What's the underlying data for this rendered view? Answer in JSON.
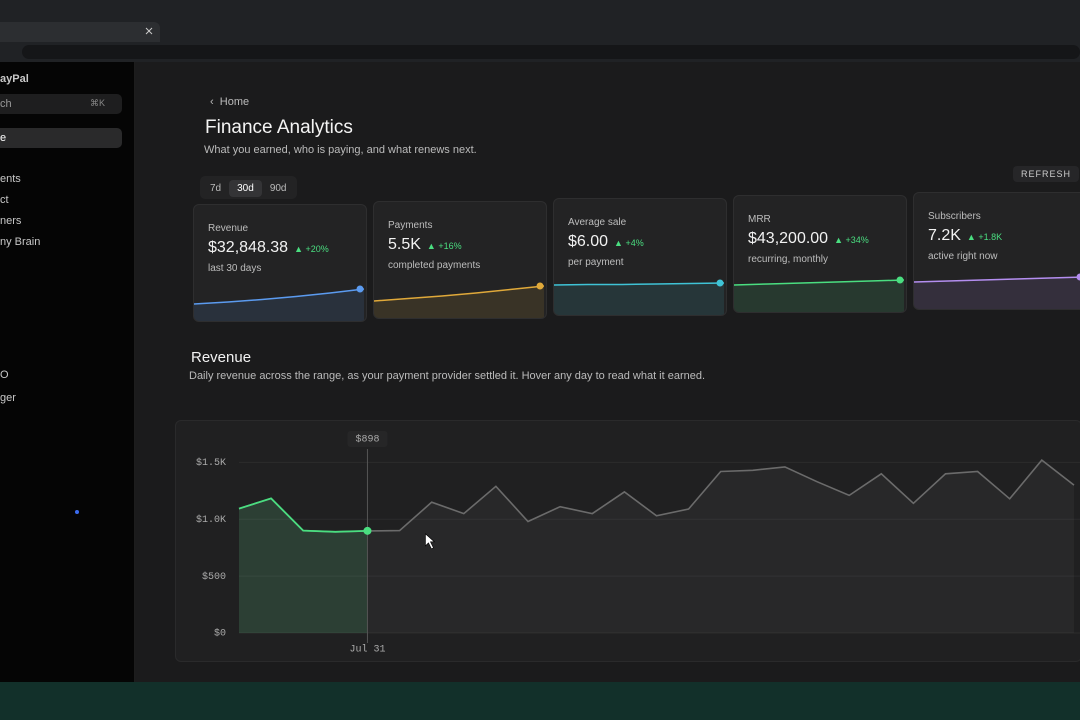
{
  "sidebar": {
    "brand": "ayPal",
    "search": "ch",
    "shortcut": "⌘K",
    "items": [
      "e",
      "ents",
      "ct",
      "ners",
      "ny Brain",
      "O",
      "ger"
    ],
    "selected_item": 0
  },
  "header": {
    "breadcrumb": "Home",
    "title": "Finance Analytics",
    "subtitle": "What you earned, who is paying, and what renews next."
  },
  "ranges": [
    "7d",
    "30d",
    "90d"
  ],
  "selected_range": 1,
  "refresh": "REFRESH",
  "cards": [
    {
      "label": "Revenue",
      "value": "$32,848.38",
      "delta": "+20%",
      "caption": "last 30 days",
      "color": "#5b9bf0",
      "spark": [
        10,
        14,
        19,
        25,
        32,
        40
      ]
    },
    {
      "label": "Payments",
      "value": "5.5K",
      "delta": "+16%",
      "caption": "completed payments",
      "color": "#e0a93a",
      "spark": [
        10,
        15,
        20,
        26,
        33,
        40
      ]
    },
    {
      "label": "Average sale",
      "value": "$6.00",
      "delta": "+4%",
      "caption": "per payment",
      "color": "#3fc3d6",
      "spark": [
        36,
        37,
        37,
        38,
        39,
        40
      ]
    },
    {
      "label": "MRR",
      "value": "$43,200.00",
      "delta": "+34%",
      "caption": "recurring, monthly",
      "color": "#4ade80",
      "spark": [
        30,
        32,
        34,
        36,
        38,
        40
      ]
    },
    {
      "label": "Subscribers",
      "value": "7.2K",
      "delta": "+1.8K",
      "caption": "active right now",
      "color": "#b48ef0",
      "spark": [
        30,
        32,
        34,
        36,
        38,
        40
      ]
    }
  ],
  "revenue": {
    "title": "Revenue",
    "description": "Daily revenue across the range, as your payment provider settled it. Hover any day to read what it earned."
  },
  "chart_data": {
    "type": "line",
    "categories": [
      null,
      null,
      null,
      null,
      "Jul 31",
      null,
      null,
      null,
      null,
      null,
      null,
      null,
      null,
      null,
      null,
      null,
      null,
      null,
      null,
      null,
      null,
      null,
      null,
      null,
      null,
      null,
      null
    ],
    "series": [
      {
        "name": "Revenue",
        "color": "#6b6b6b",
        "highlight_color": "#4ade80",
        "values": [
          1094,
          1183,
          900,
          890,
          898,
          900,
          1150,
          1050,
          1290,
          980,
          1110,
          1050,
          1240,
          1030,
          1090,
          1420,
          1430,
          1460,
          1330,
          1210,
          1400,
          1140,
          1400,
          1420,
          1180,
          1520,
          1300
        ],
        "value_labels": [
          null,
          null,
          null,
          null,
          "$898",
          null,
          null,
          null,
          null,
          null,
          null,
          null,
          null,
          null,
          null,
          null,
          null,
          null,
          null,
          null,
          null,
          null,
          null,
          null,
          null,
          null,
          null
        ]
      }
    ],
    "ylim": [
      0,
      1600
    ],
    "yticks": [
      {
        "value": 0,
        "label": "$0"
      },
      {
        "value": 500,
        "label": "$500"
      },
      {
        "value": 1000,
        "label": "$1.0K"
      },
      {
        "value": 1500,
        "label": "$1.5K"
      }
    ],
    "grid": true
  }
}
